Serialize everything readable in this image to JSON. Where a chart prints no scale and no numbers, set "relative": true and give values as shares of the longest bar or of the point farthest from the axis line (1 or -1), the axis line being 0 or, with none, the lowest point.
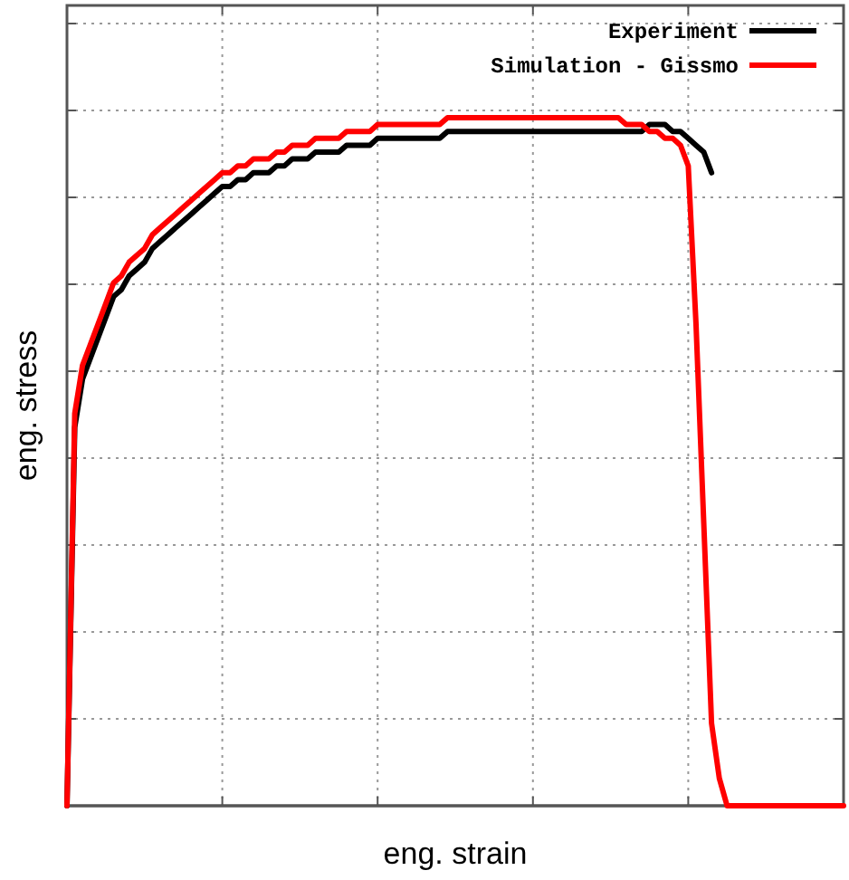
{
  "chart_data": {
    "type": "line",
    "xlabel": "eng. strain",
    "ylabel": "eng. stress",
    "relative": true,
    "grid": true,
    "legend": "top right",
    "line_style": "solid",
    "marker": "none",
    "categories": [
      null,
      null,
      null,
      null,
      null,
      null,
      null,
      null,
      null,
      null,
      null,
      null,
      null,
      null,
      null,
      null,
      null,
      null,
      null,
      null,
      null,
      null,
      null,
      null,
      null,
      null,
      null,
      null,
      null,
      null,
      null,
      null,
      null,
      null,
      null,
      null,
      null,
      null,
      null,
      null,
      null,
      null,
      null,
      null,
      null,
      null,
      null,
      null,
      null,
      null,
      null,
      null,
      null,
      null,
      null,
      null,
      null,
      null,
      null,
      null,
      null,
      null,
      null,
      null,
      null,
      null,
      null,
      null,
      null,
      null,
      null,
      null,
      null,
      null,
      null,
      null,
      null,
      null,
      null,
      null,
      null,
      null,
      null,
      null,
      null,
      null,
      null,
      null,
      null,
      null,
      null,
      null,
      null,
      null,
      null,
      null,
      null,
      null,
      null,
      null,
      null
    ],
    "series": [
      {
        "name": "Experiment",
        "color": "#000000",
        "values": [
          0,
          0.55,
          0.62,
          0.65,
          0.68,
          0.71,
          0.74,
          0.75,
          0.77,
          0.78,
          0.79,
          0.81,
          0.82,
          0.83,
          0.84,
          0.85,
          0.86,
          0.87,
          0.88,
          0.89,
          0.9,
          0.9,
          0.91,
          0.91,
          0.92,
          0.92,
          0.92,
          0.93,
          0.93,
          0.94,
          0.94,
          0.94,
          0.95,
          0.95,
          0.95,
          0.95,
          0.96,
          0.96,
          0.96,
          0.96,
          0.97,
          0.97,
          0.97,
          0.97,
          0.97,
          0.97,
          0.97,
          0.97,
          0.97,
          0.98,
          0.98,
          0.98,
          0.98,
          0.98,
          0.98,
          0.98,
          0.98,
          0.98,
          0.98,
          0.98,
          0.98,
          0.98,
          0.98,
          0.98,
          0.98,
          0.98,
          0.98,
          0.98,
          0.98,
          0.98,
          0.98,
          0.98,
          0.98,
          0.98,
          0.98,
          0.99,
          0.99,
          0.99,
          0.98,
          0.98,
          0.97,
          0.96,
          0.95,
          0.92,
          null,
          null,
          null,
          null,
          null,
          null,
          null,
          null,
          null,
          null,
          null,
          null,
          null,
          null,
          null,
          null,
          null
        ]
      },
      {
        "name": "Simulation - Gissmo",
        "color": "#ff0000",
        "values": [
          0,
          0.57,
          0.64,
          0.67,
          0.7,
          0.73,
          0.76,
          0.77,
          0.79,
          0.8,
          0.81,
          0.83,
          0.84,
          0.85,
          0.86,
          0.87,
          0.88,
          0.89,
          0.9,
          0.91,
          0.92,
          0.92,
          0.93,
          0.93,
          0.94,
          0.94,
          0.94,
          0.95,
          0.95,
          0.96,
          0.96,
          0.96,
          0.97,
          0.97,
          0.97,
          0.97,
          0.98,
          0.98,
          0.98,
          0.98,
          0.99,
          0.99,
          0.99,
          0.99,
          0.99,
          0.99,
          0.99,
          0.99,
          0.99,
          1,
          1,
          1,
          1,
          1,
          1,
          1,
          1,
          1,
          1,
          1,
          1,
          1,
          1,
          1,
          1,
          1,
          1,
          1,
          1,
          1,
          1,
          1,
          0.99,
          0.99,
          0.99,
          0.98,
          0.98,
          0.97,
          0.97,
          0.96,
          0.93,
          0.7,
          0.41,
          0.12,
          0.04,
          0,
          0,
          0,
          0,
          0,
          0,
          0,
          0,
          0,
          0,
          0,
          0,
          0,
          0,
          0,
          0
        ]
      }
    ]
  }
}
